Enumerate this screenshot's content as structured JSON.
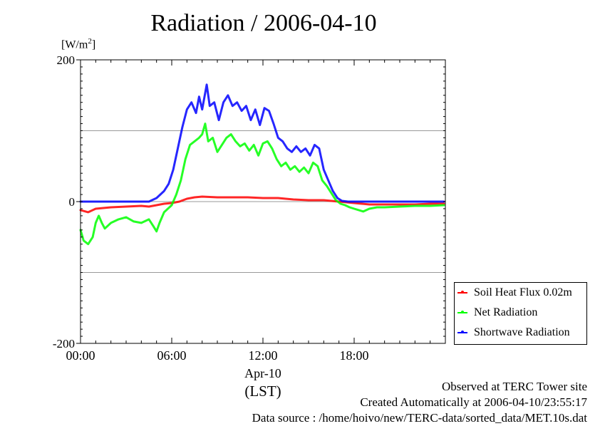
{
  "chart_data": {
    "type": "line",
    "title": "Radiation / 2006-04-10",
    "ylabel_unit": "W/m",
    "ylabel_unit_sup": "2",
    "ylim": [
      -200,
      200
    ],
    "yticks": [
      -200,
      0,
      200
    ],
    "xlim": [
      0,
      24
    ],
    "xticks": [
      "00:00",
      "06:00",
      "12:00",
      "18:00"
    ],
    "xlabel_date": "Apr-10",
    "xlabel_zone": "(LST)",
    "grid": "horizontal at -100, 0, 100",
    "legend_position": "lower-right outside",
    "series": [
      {
        "name": "Soil Heat Flux 0.02m",
        "color": "#ff0000",
        "points": [
          [
            0,
            -12
          ],
          [
            0.5,
            -15
          ],
          [
            1.0,
            -10
          ],
          [
            1.5,
            -9
          ],
          [
            2.0,
            -8
          ],
          [
            3.0,
            -7
          ],
          [
            4.0,
            -6
          ],
          [
            4.5,
            -7
          ],
          [
            5.0,
            -5
          ],
          [
            5.5,
            -3
          ],
          [
            6.0,
            -2
          ],
          [
            6.5,
            0
          ],
          [
            7.0,
            4
          ],
          [
            7.5,
            6
          ],
          [
            8.0,
            7
          ],
          [
            9.0,
            6
          ],
          [
            10.0,
            6
          ],
          [
            11.0,
            6
          ],
          [
            12.0,
            5
          ],
          [
            13.0,
            5
          ],
          [
            14.0,
            3
          ],
          [
            15.0,
            2
          ],
          [
            16.0,
            2
          ],
          [
            17.0,
            0
          ],
          [
            17.5,
            -1
          ],
          [
            18.0,
            -2
          ],
          [
            18.5,
            -3
          ],
          [
            19.0,
            -4
          ],
          [
            20.0,
            -4
          ],
          [
            21.0,
            -4
          ],
          [
            22.0,
            -4
          ],
          [
            23.0,
            -3
          ],
          [
            23.9,
            -3
          ]
        ]
      },
      {
        "name": "Net Radiation",
        "color": "#00ff00",
        "points": [
          [
            0,
            -40
          ],
          [
            0.2,
            -55
          ],
          [
            0.5,
            -60
          ],
          [
            0.8,
            -50
          ],
          [
            1.0,
            -30
          ],
          [
            1.2,
            -20
          ],
          [
            1.4,
            -30
          ],
          [
            1.6,
            -38
          ],
          [
            2.0,
            -30
          ],
          [
            2.5,
            -25
          ],
          [
            3.0,
            -22
          ],
          [
            3.5,
            -28
          ],
          [
            4.0,
            -30
          ],
          [
            4.5,
            -25
          ],
          [
            4.8,
            -35
          ],
          [
            5.0,
            -42
          ],
          [
            5.2,
            -30
          ],
          [
            5.5,
            -15
          ],
          [
            6.0,
            -5
          ],
          [
            6.3,
            10
          ],
          [
            6.6,
            30
          ],
          [
            6.9,
            60
          ],
          [
            7.2,
            80
          ],
          [
            7.5,
            85
          ],
          [
            7.8,
            90
          ],
          [
            8.0,
            95
          ],
          [
            8.2,
            110
          ],
          [
            8.4,
            85
          ],
          [
            8.7,
            90
          ],
          [
            9.0,
            70
          ],
          [
            9.3,
            80
          ],
          [
            9.6,
            90
          ],
          [
            9.9,
            95
          ],
          [
            10.2,
            85
          ],
          [
            10.5,
            78
          ],
          [
            10.8,
            82
          ],
          [
            11.1,
            72
          ],
          [
            11.4,
            80
          ],
          [
            11.7,
            65
          ],
          [
            12.0,
            82
          ],
          [
            12.3,
            85
          ],
          [
            12.6,
            75
          ],
          [
            12.9,
            60
          ],
          [
            13.2,
            50
          ],
          [
            13.5,
            55
          ],
          [
            13.8,
            45
          ],
          [
            14.1,
            50
          ],
          [
            14.4,
            42
          ],
          [
            14.7,
            48
          ],
          [
            15.0,
            40
          ],
          [
            15.3,
            55
          ],
          [
            15.6,
            50
          ],
          [
            15.9,
            30
          ],
          [
            16.2,
            22
          ],
          [
            16.5,
            12
          ],
          [
            16.8,
            2
          ],
          [
            17.1,
            -3
          ],
          [
            17.4,
            -5
          ],
          [
            17.7,
            -8
          ],
          [
            18.0,
            -10
          ],
          [
            18.3,
            -12
          ],
          [
            18.6,
            -14
          ],
          [
            19.0,
            -10
          ],
          [
            19.5,
            -8
          ],
          [
            20.0,
            -8
          ],
          [
            21.0,
            -7
          ],
          [
            22.0,
            -6
          ],
          [
            23.0,
            -6
          ],
          [
            23.9,
            -5
          ]
        ]
      },
      {
        "name": "Shortwave Radiation",
        "color": "#0000ff",
        "points": [
          [
            0,
            0
          ],
          [
            4.5,
            0
          ],
          [
            5.0,
            5
          ],
          [
            5.5,
            15
          ],
          [
            5.8,
            25
          ],
          [
            6.1,
            45
          ],
          [
            6.4,
            75
          ],
          [
            6.7,
            105
          ],
          [
            7.0,
            130
          ],
          [
            7.3,
            140
          ],
          [
            7.6,
            125
          ],
          [
            7.8,
            148
          ],
          [
            8.0,
            130
          ],
          [
            8.3,
            165
          ],
          [
            8.5,
            135
          ],
          [
            8.8,
            140
          ],
          [
            9.1,
            115
          ],
          [
            9.4,
            140
          ],
          [
            9.7,
            150
          ],
          [
            10.0,
            135
          ],
          [
            10.3,
            140
          ],
          [
            10.6,
            128
          ],
          [
            10.9,
            135
          ],
          [
            11.2,
            115
          ],
          [
            11.5,
            130
          ],
          [
            11.8,
            108
          ],
          [
            12.1,
            132
          ],
          [
            12.4,
            128
          ],
          [
            12.7,
            110
          ],
          [
            13.0,
            90
          ],
          [
            13.3,
            85
          ],
          [
            13.6,
            75
          ],
          [
            13.9,
            70
          ],
          [
            14.2,
            78
          ],
          [
            14.5,
            70
          ],
          [
            14.8,
            75
          ],
          [
            15.1,
            65
          ],
          [
            15.4,
            80
          ],
          [
            15.7,
            75
          ],
          [
            16.0,
            45
          ],
          [
            16.3,
            30
          ],
          [
            16.6,
            15
          ],
          [
            16.9,
            5
          ],
          [
            17.2,
            1
          ],
          [
            17.6,
            0
          ],
          [
            23.9,
            0
          ]
        ]
      }
    ]
  },
  "footer": {
    "line1": "Observed at TERC Tower site",
    "line2": "Created Automatically at 2006-04-10/23:55:17",
    "line3": "Data source : /home/hoivo/new/TERC-data/sorted_data/MET.10s.dat"
  }
}
